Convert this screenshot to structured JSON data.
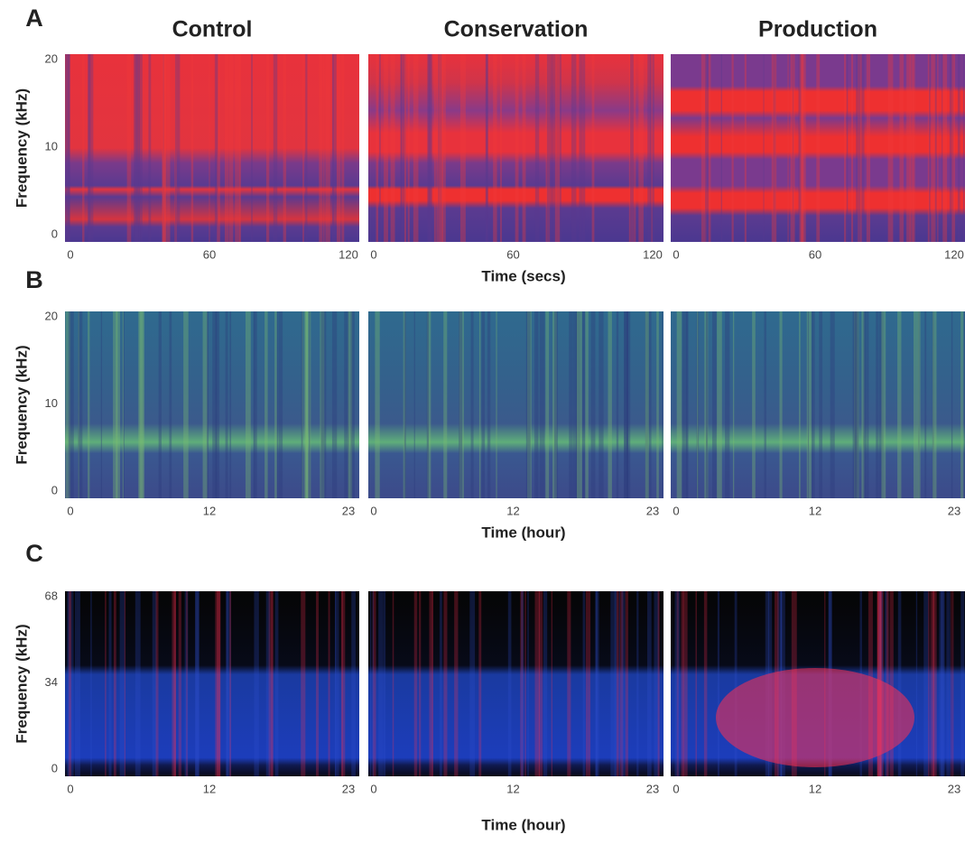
{
  "figure": {
    "columns": [
      "Control",
      "Conservation",
      "Production"
    ],
    "rows": [
      {
        "label": "A",
        "y_axis_label": "Frequency (kHz)",
        "y_ticks": [
          20,
          10,
          0
        ],
        "x_ticks": [
          0,
          60,
          120
        ],
        "x_axis_label": "Time (secs)"
      },
      {
        "label": "B",
        "y_axis_label": "Frequency (kHz)",
        "y_ticks": [
          20,
          10,
          0
        ],
        "x_ticks": [
          0,
          12,
          23
        ],
        "x_axis_label": "Time (hour)"
      },
      {
        "label": "C",
        "y_axis_label": "Frequency (kHz)",
        "y_ticks": [
          68,
          34,
          0
        ],
        "x_ticks": [
          0,
          12,
          23
        ],
        "x_axis_label": "Time (hour)"
      }
    ]
  }
}
